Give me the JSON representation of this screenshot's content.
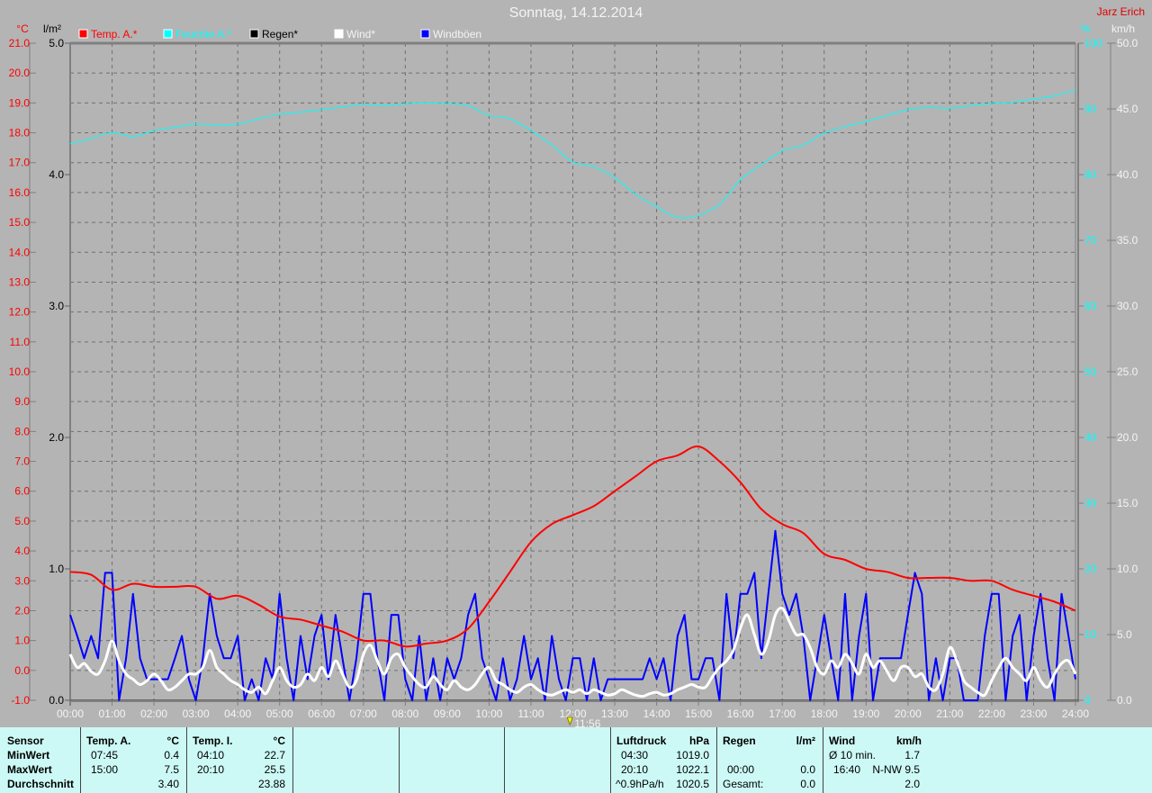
{
  "header": {
    "title": "Sonntag, 14.12.2014",
    "owner": "Jarz Erich"
  },
  "colors": {
    "temp": "#ff0000",
    "humidity": "#00ffff",
    "rain": "#000000",
    "wind": "#ffffff",
    "gust": "#0000ff",
    "background": "#b4b4b4",
    "stats_bg": "#ccf9f5"
  },
  "chart_data": {
    "type": "line",
    "x_ticks": [
      "00:00",
      "01:00",
      "02:00",
      "03:00",
      "04:00",
      "05:00",
      "06:00",
      "07:00",
      "08:00",
      "09:00",
      "10:00",
      "11:00",
      "12:00",
      "13:00",
      "14:00",
      "15:00",
      "16:00",
      "17:00",
      "18:00",
      "19:00",
      "20:00",
      "21:00",
      "22:00",
      "23:00",
      "24:00"
    ],
    "xlim_hours": [
      0,
      24
    ],
    "grid": true,
    "legend_placement": "top",
    "axes": {
      "temp": {
        "unit": "°C",
        "ylim": [
          -1,
          21
        ],
        "ticks": [
          "21.0",
          "20.0",
          "19.0",
          "18.0",
          "17.0",
          "16.0",
          "15.0",
          "14.0",
          "13.0",
          "12.0",
          "11.0",
          "10.0",
          "9.0",
          "8.0",
          "7.0",
          "6.0",
          "5.0",
          "4.0",
          "3.0",
          "2.0",
          "1.0",
          "0.0",
          "-1.0"
        ]
      },
      "rain": {
        "unit": "l/m²",
        "ylim": [
          0,
          5
        ],
        "ticks": [
          "5.0",
          "4.0",
          "3.0",
          "2.0",
          "1.0",
          "0.0"
        ]
      },
      "humidity": {
        "unit": "%",
        "ylim": [
          0,
          100
        ],
        "ticks": [
          "100",
          "90",
          "80",
          "70",
          "60",
          "50",
          "40",
          "30",
          "20",
          "10",
          "0"
        ]
      },
      "wind": {
        "unit": "km/h",
        "ylim": [
          0,
          50
        ],
        "ticks": [
          "50.0",
          "45.0",
          "40.0",
          "35.0",
          "30.0",
          "25.0",
          "20.0",
          "15.0",
          "10.0",
          "5.0",
          "0.0"
        ]
      }
    },
    "marker": {
      "label": "11:56",
      "hour": 11.93
    },
    "series": [
      {
        "name": "Temp. A.*",
        "axis": "temp",
        "interval_min": 30,
        "values": [
          3.3,
          3.2,
          2.7,
          2.9,
          2.8,
          2.8,
          2.8,
          2.4,
          2.5,
          2.2,
          1.8,
          1.7,
          1.5,
          1.3,
          1.0,
          1.0,
          0.8,
          0.9,
          1.0,
          1.4,
          2.3,
          3.3,
          4.3,
          4.9,
          5.2,
          5.5,
          6.0,
          6.5,
          7.0,
          7.2,
          7.5,
          7.0,
          6.3,
          5.4,
          4.9,
          4.6,
          3.9,
          3.7,
          3.4,
          3.3,
          3.1,
          3.1,
          3.1,
          3.0,
          3.0,
          2.7,
          2.5,
          2.3,
          2.0
        ]
      },
      {
        "name": "Feuchte A.*",
        "axis": "humidity",
        "interval_min": 30,
        "values": [
          84.7,
          85.5,
          86.4,
          85.8,
          86.7,
          87.2,
          87.7,
          87.5,
          87.7,
          88.5,
          89.2,
          89.5,
          89.9,
          90.3,
          90.7,
          90.5,
          90.8,
          90.9,
          90.8,
          90.5,
          89.0,
          88.5,
          86.7,
          84.5,
          81.9,
          81.2,
          79.5,
          77.0,
          75.1,
          73.5,
          73.8,
          75.5,
          79.2,
          81.5,
          83.6,
          84.5,
          86.3,
          87.3,
          88.1,
          89.0,
          89.9,
          90.2,
          90.1,
          90.5,
          90.8,
          91.0,
          91.5,
          92.0,
          92.9
        ]
      },
      {
        "name": "Regen*",
        "axis": "rain",
        "interval_min": 60,
        "values": [
          0,
          0,
          0,
          0,
          0,
          0,
          0,
          0,
          0,
          0,
          0,
          0,
          0,
          0,
          0,
          0,
          0,
          0,
          0,
          0,
          0,
          0,
          0,
          0,
          0
        ]
      },
      {
        "name": "Wind*",
        "axis": "wind",
        "interval_min": 10,
        "values": [
          3.5,
          2.5,
          2.8,
          2.2,
          2.0,
          3.0,
          4.5,
          3.0,
          2.0,
          1.6,
          1.2,
          1.5,
          2.0,
          1.5,
          0.8,
          1.0,
          1.5,
          2.0,
          2.0,
          2.5,
          3.8,
          2.5,
          2.0,
          1.5,
          1.2,
          0.8,
          0.6,
          1.0,
          0.5,
          1.5,
          2.5,
          1.5,
          1.0,
          1.2,
          2.0,
          1.5,
          2.5,
          1.8,
          3.0,
          2.0,
          1.0,
          1.5,
          3.5,
          4.2,
          3.0,
          2.0,
          3.2,
          3.5,
          2.5,
          1.8,
          1.2,
          1.0,
          1.8,
          1.2,
          0.8,
          1.5,
          1.0,
          0.8,
          1.2,
          2.0,
          2.5,
          1.5,
          1.2,
          0.8,
          0.6,
          1.0,
          1.2,
          0.8,
          0.5,
          0.4,
          0.6,
          0.8,
          0.6,
          0.8,
          0.5,
          0.8,
          0.6,
          0.4,
          0.5,
          0.8,
          0.6,
          0.4,
          0.3,
          0.5,
          0.6,
          0.4,
          0.5,
          0.8,
          1.0,
          1.2,
          1.0,
          1.0,
          1.8,
          2.5,
          3.0,
          3.8,
          5.5,
          6.5,
          5.0,
          3.5,
          4.5,
          6.5,
          7.0,
          6.0,
          5.0,
          5.0,
          4.0,
          2.5,
          2.0,
          3.0,
          2.5,
          3.5,
          2.8,
          2.0,
          3.5,
          2.5,
          3.0,
          2.2,
          1.5,
          2.5,
          2.5,
          1.8,
          2.0,
          1.0,
          0.8,
          2.0,
          4.0,
          3.0,
          1.5,
          1.0,
          0.6,
          0.4,
          1.5,
          2.5,
          3.2,
          2.5,
          2.0,
          1.5,
          2.5,
          1.5,
          1.0,
          2.0,
          2.8,
          3.0,
          2.0
        ]
      },
      {
        "name": "Windböen",
        "axis": "wind",
        "interval_min": 10,
        "values": [
          6.5,
          4.9,
          3.2,
          4.9,
          3.2,
          9.7,
          9.7,
          0,
          3.2,
          8.1,
          3.2,
          1.6,
          1.6,
          1.6,
          1.6,
          3.2,
          4.9,
          1.6,
          0,
          3.2,
          8.1,
          4.9,
          3.2,
          3.2,
          4.9,
          0,
          1.6,
          0,
          3.2,
          1.6,
          8.1,
          3.2,
          0,
          4.9,
          1.6,
          4.9,
          6.5,
          1.6,
          6.5,
          3.2,
          0,
          3.2,
          8.1,
          8.1,
          3.2,
          0,
          6.5,
          6.5,
          1.6,
          0,
          4.9,
          0,
          3.2,
          0,
          3.2,
          1.6,
          3.2,
          6.5,
          8.1,
          3.2,
          1.6,
          0,
          3.2,
          0,
          1.6,
          4.9,
          1.6,
          3.2,
          0,
          4.9,
          1.6,
          0,
          3.2,
          3.2,
          0,
          3.2,
          0,
          1.6,
          1.6,
          1.6,
          1.6,
          1.6,
          1.6,
          3.2,
          1.6,
          3.2,
          0,
          4.9,
          6.5,
          1.6,
          1.6,
          3.2,
          3.2,
          0,
          8.1,
          3.2,
          8.1,
          8.1,
          9.7,
          3.2,
          8.1,
          12.9,
          8.1,
          6.5,
          8.1,
          4.9,
          0,
          3.2,
          6.5,
          3.2,
          0,
          8.1,
          0,
          4.9,
          8.1,
          0,
          3.2,
          3.2,
          3.2,
          3.2,
          6.5,
          9.7,
          8.1,
          0,
          3.2,
          0,
          3.2,
          3.2,
          0,
          0,
          0,
          4.9,
          8.1,
          8.1,
          0,
          4.9,
          6.5,
          0,
          4.9,
          8.1,
          3.2,
          0,
          8.1,
          4.9,
          1.6
        ]
      }
    ]
  },
  "stats": {
    "labels": {
      "sensor": "Sensor",
      "min": "MinWert",
      "max": "MaxWert",
      "avg": "Durchschnitt"
    },
    "temp_a": {
      "title": "Temp. A.",
      "unit": "°C",
      "min_time": "07:45",
      "min": "0.4",
      "max_time": "15:00",
      "max": "7.5",
      "avg": "3.40"
    },
    "temp_i": {
      "title": "Temp. I.",
      "unit": "°C",
      "min_time": "04:10",
      "min": "22.7",
      "max_time": "20:10",
      "max": "25.5",
      "avg": "23.88"
    },
    "pressure": {
      "title": "Luftdruck",
      "unit": "hPa",
      "min_time": "04:30",
      "min": "1019.0",
      "max_time": "20:10",
      "max": "1022.1",
      "trend": "^0.9hPa/h",
      "avg": "1020.5"
    },
    "rain": {
      "title": "Regen",
      "unit": "l/m²",
      "time": "00:00",
      "value": "0.0",
      "total_label": "Gesamt:",
      "total": "0.0"
    },
    "wind": {
      "title": "Wind",
      "unit": "km/h",
      "avg_label": "Ø 10 min.",
      "avg": "1.7",
      "max_time": "16:40",
      "max": "N-NW 9.5",
      "mean": "2.0"
    }
  }
}
